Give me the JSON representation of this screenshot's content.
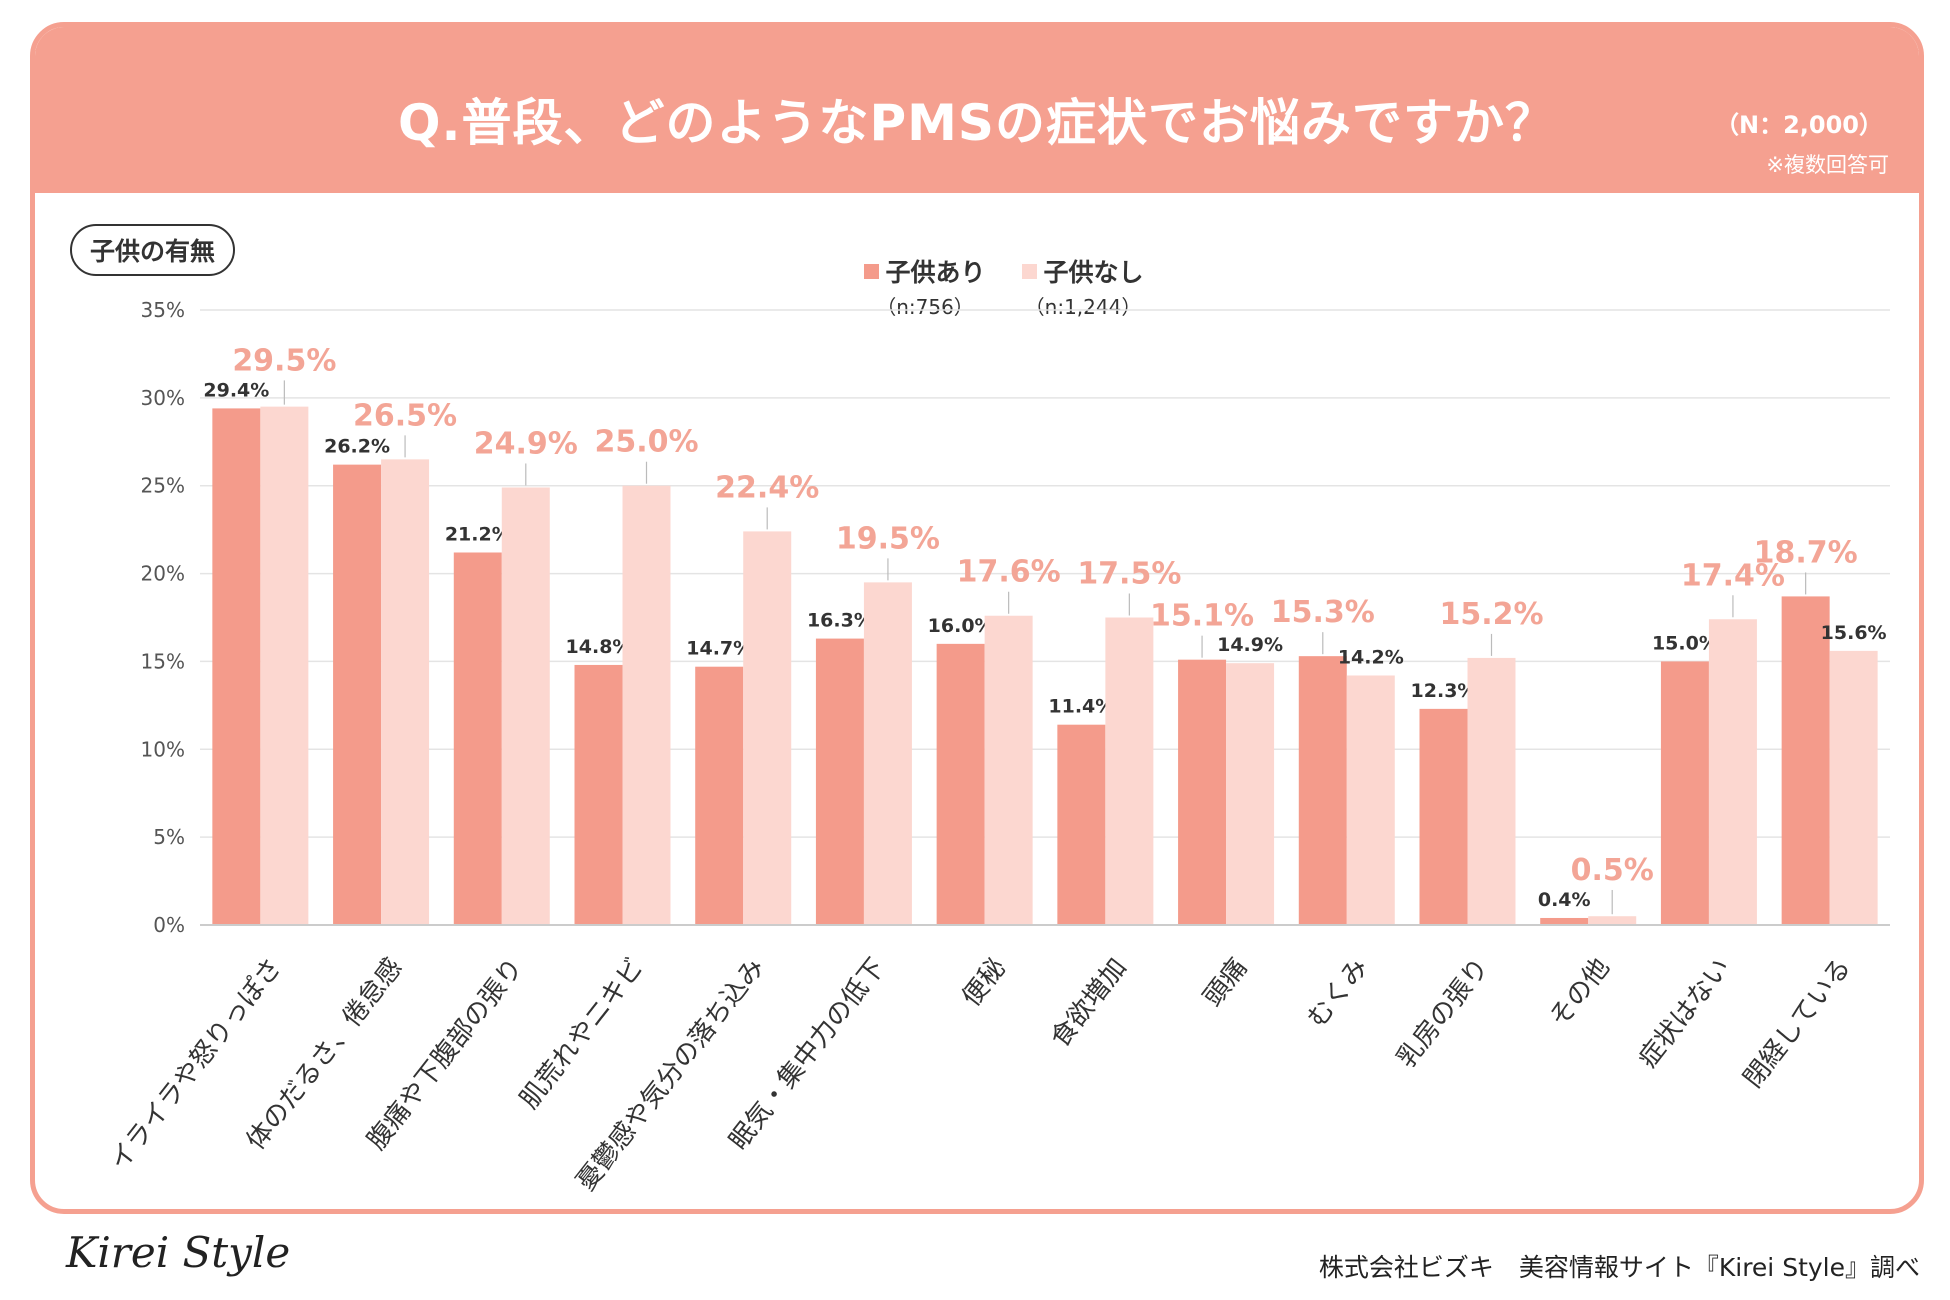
{
  "header": {
    "title": "Q.普段、どのようなPMSの症状でお悩みですか？",
    "sample_size": "（N：2,000）",
    "note": "※複数回答可"
  },
  "group_label": "子供の有無",
  "legend": [
    {
      "label": "子供あり",
      "sub": "（n:756）",
      "color": "#f49b8b"
    },
    {
      "label": "子供なし",
      "sub": "（n:1,244）",
      "color": "#fcd7d0"
    }
  ],
  "chart_data": {
    "type": "bar",
    "title": "Q.普段、どのようなPMSの症状でお悩みですか？",
    "ylim": [
      0,
      35
    ],
    "yticks": [
      "0%",
      "5%",
      "10%",
      "15%",
      "20%",
      "25%",
      "30%",
      "35%"
    ],
    "categories": [
      "イライラや怒りっぽさ",
      "体のだるさ、倦怠感",
      "腹痛や下腹部の張り",
      "肌荒れやニキビ",
      "憂鬱感や気分の落ち込み",
      "眠気・集中力の低下",
      "便秘",
      "食欲増加",
      "頭痛",
      "むくみ",
      "乳房の張り",
      "その他",
      "症状はない",
      "閉経している"
    ],
    "series": [
      {
        "name": "子供あり",
        "values": [
          29.4,
          26.2,
          21.2,
          14.8,
          14.7,
          16.3,
          16.0,
          11.4,
          15.1,
          15.3,
          12.3,
          0.4,
          15.0,
          18.7
        ],
        "labels": [
          "29.4%",
          "26.2%",
          "21.2%",
          "14.8%",
          "14.7%",
          "16.3%",
          "16.0%",
          "11.4%",
          "15.1%",
          "15.3%",
          "12.3%",
          "0.4%",
          "15.0%",
          "18.7%"
        ],
        "highlight": [
          false,
          false,
          false,
          false,
          false,
          false,
          false,
          false,
          true,
          true,
          false,
          false,
          false,
          true
        ]
      },
      {
        "name": "子供なし",
        "values": [
          29.5,
          26.5,
          24.9,
          25.0,
          22.4,
          19.5,
          17.6,
          17.5,
          14.9,
          14.2,
          15.2,
          0.5,
          17.4,
          15.6
        ],
        "labels": [
          "29.5%",
          "26.5%",
          "24.9%",
          "25.0%",
          "22.4%",
          "19.5%",
          "17.6%",
          "17.5%",
          "14.9%",
          "14.2%",
          "15.2%",
          "0.5%",
          "17.4%",
          "15.6%"
        ],
        "highlight": [
          true,
          true,
          true,
          true,
          true,
          true,
          true,
          true,
          false,
          false,
          true,
          true,
          true,
          false
        ]
      }
    ],
    "colors": {
      "series1": "#f49b8b",
      "series2": "#fcd7d0",
      "highlight_text": "#f3a596",
      "normal_text": "#333333",
      "grid": "#e4e4e4",
      "axis_text": "#555555"
    }
  },
  "footer": {
    "logo": "Kirei Style",
    "credit": "株式会社ビズキ　美容情報サイト『Kirei Style』調べ"
  }
}
